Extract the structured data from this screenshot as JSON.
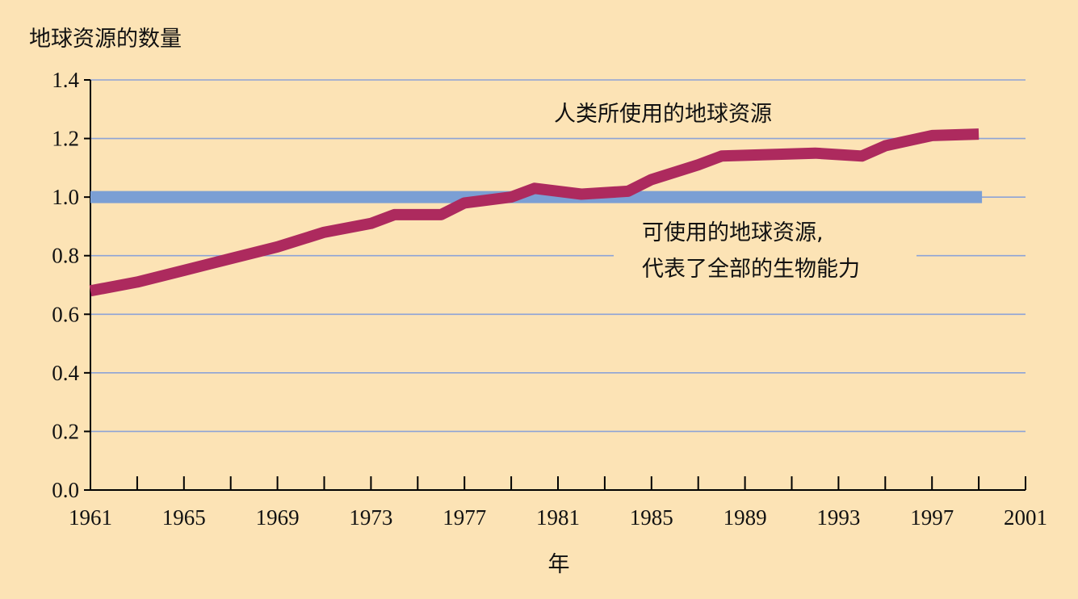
{
  "chart_data": {
    "type": "line",
    "ylabel": "地球资源的数量",
    "xlabel": "年",
    "xlim": [
      1961,
      2001
    ],
    "ylim": [
      0,
      1.4
    ],
    "x_ticks": [
      1961,
      1965,
      1969,
      1973,
      1977,
      1981,
      1985,
      1989,
      1993,
      1997,
      2001
    ],
    "y_ticks": [
      "0.0",
      "0.2",
      "0.4",
      "0.6",
      "0.8",
      "1.0",
      "1.2",
      "1.4"
    ],
    "grid": true,
    "series": [
      {
        "name": "人类所使用的地球资源",
        "color": "#ad2a5e",
        "x": [
          1961,
          1963,
          1965,
          1967,
          1969,
          1971,
          1973,
          1974,
          1976,
          1977,
          1979,
          1980,
          1982,
          1984,
          1985,
          1987,
          1988,
          1990,
          1992,
          1994,
          1995,
          1997,
          1999
        ],
        "y": [
          0.68,
          0.71,
          0.75,
          0.79,
          0.83,
          0.88,
          0.91,
          0.94,
          0.94,
          0.98,
          1.0,
          1.03,
          1.01,
          1.02,
          1.06,
          1.11,
          1.14,
          1.145,
          1.15,
          1.14,
          1.175,
          1.21,
          1.215
        ]
      },
      {
        "name": "可使用的地球资源，代表了全部的生物能力",
        "color": "#7b9fd4",
        "x": [
          1961,
          1999
        ],
        "y": [
          1.0,
          1.0
        ]
      }
    ],
    "annotations": {
      "used": "人类所使用的地球资源",
      "available_line1": "可使用的地球资源,",
      "available_line2": "代表了全部的生物能力"
    }
  }
}
